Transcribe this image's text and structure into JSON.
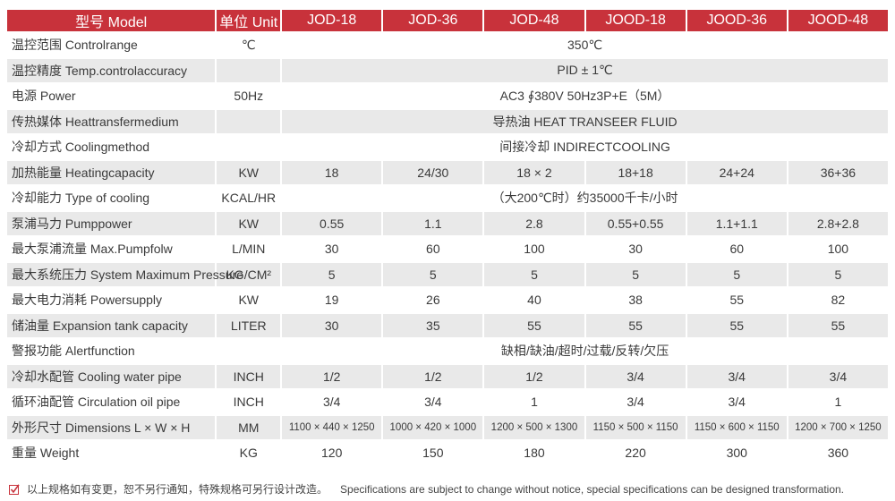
{
  "header": [
    "型号 Model",
    "单位 Unit",
    "JOD-18",
    "JOD-36",
    "JOD-48",
    "JOOD-18",
    "JOOD-36",
    "JOOD-48"
  ],
  "rows": [
    {
      "label": "温控范围 Controlrange",
      "unit": "℃",
      "merged": "350℃"
    },
    {
      "label": "温控精度 Temp.controlaccuracy",
      "unit": "",
      "merged": "PID ± 1℃"
    },
    {
      "label": "电源 Power",
      "unit": "50Hz",
      "merged": "AC3 ∮380V 50Hz3P+E（5M）"
    },
    {
      "label": "传热媒体 Heattransfermedium",
      "unit": "",
      "merged": "导热油 HEAT TRANSEER FLUID"
    },
    {
      "label": "冷却方式 Coolingmethod",
      "unit": "",
      "merged": "间接冷却 INDIRECTCOOLING"
    },
    {
      "label": "加热能量 Heatingcapacity",
      "unit": "KW",
      "values": [
        "18",
        "24/30",
        "18 × 2",
        "18+18",
        "24+24",
        "36+36"
      ]
    },
    {
      "label": "冷却能力 Type of cooling",
      "unit": "KCAL/HR",
      "merged": "（大200℃时）约35000千卡/小时"
    },
    {
      "label": "泵浦马力 Pumppower",
      "unit": "KW",
      "values": [
        "0.55",
        "1.1",
        "2.8",
        "0.55+0.55",
        "1.1+1.1",
        "2.8+2.8"
      ]
    },
    {
      "label": "最大泵浦流量 Max.Pumpfolw",
      "unit": "L/MIN",
      "values": [
        "30",
        "60",
        "100",
        "30",
        "60",
        "100"
      ]
    },
    {
      "label": "最大系统压力 System Maximum Pressure",
      "unit": "KG/CM²",
      "values": [
        "5",
        "5",
        "5",
        "5",
        "5",
        "5"
      ]
    },
    {
      "label": "最大电力消耗 Powersupply",
      "unit": "KW",
      "values": [
        "19",
        "26",
        "40",
        "38",
        "55",
        "82"
      ]
    },
    {
      "label": "储油量 Expansion tank capacity",
      "unit": "LITER",
      "values": [
        "30",
        "35",
        "55",
        "55",
        "55",
        "55"
      ]
    },
    {
      "label": "警报功能 Alertfunction",
      "unit": "",
      "merged": "缺相/缺油/超时/过载/反转/欠压"
    },
    {
      "label": "冷却水配管 Cooling water pipe",
      "unit": "INCH",
      "values": [
        "1/2",
        "1/2",
        "1/2",
        "3/4",
        "3/4",
        "3/4"
      ]
    },
    {
      "label": "循环油配管 Circulation oil pipe",
      "unit": "INCH",
      "values": [
        "3/4",
        "3/4",
        "1",
        "3/4",
        "3/4",
        "1"
      ]
    },
    {
      "label": "外形尺寸 Dimensions L × W × H",
      "unit": "MM",
      "values": [
        "1100 × 440 × 1250",
        "1000 × 420 × 1000",
        "1200 × 500 × 1300",
        "1150 × 500 × 1150",
        "1150 × 600 × 1150",
        "1200 × 700 × 1250"
      ],
      "small": true
    },
    {
      "label": "重量 Weight",
      "unit": "KG",
      "values": [
        "120",
        "150",
        "180",
        "220",
        "300",
        "360"
      ]
    }
  ],
  "note": {
    "cn": "以上规格如有变更，恕不另行通知，特殊规格可另行设计改造。",
    "en": "Specifications are subject to change without notice, special specifications can be designed transformation.",
    "icon": "checkbox-check-icon",
    "accent": "#c8323b"
  },
  "colors": {
    "header": "#c8323b",
    "stripe": "#e9e9e9"
  }
}
